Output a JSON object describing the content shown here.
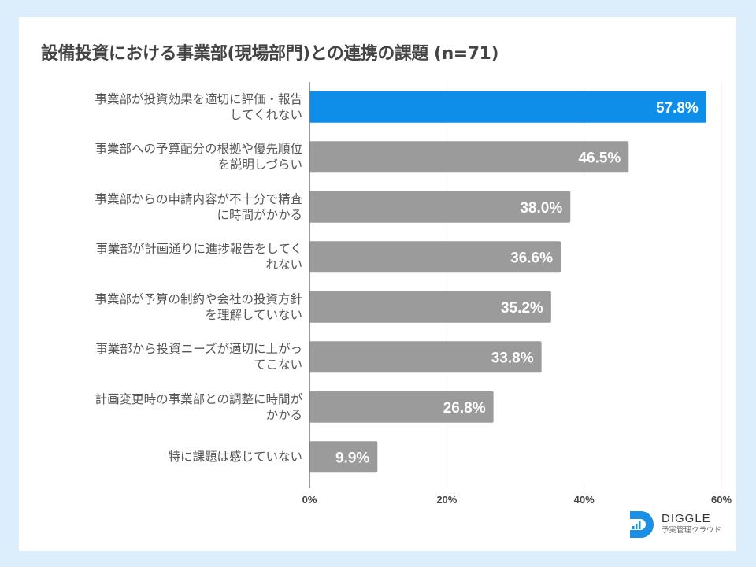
{
  "brand": {
    "name": "DIGGLE",
    "tagline": "予実管理クラウド",
    "logo_color": "#1a8fe6",
    "background": "#dcedfb"
  },
  "chart_data": {
    "type": "bar",
    "orientation": "horizontal",
    "title": "設備投資における事業部(現場部門)との連携の課題 (n=71)",
    "xlabel": "",
    "ylabel": "",
    "xlim": [
      0,
      60
    ],
    "x_ticks": [
      "0%",
      "20%",
      "40%",
      "60%"
    ],
    "x_tick_values": [
      0,
      20,
      40,
      60
    ],
    "grid": true,
    "legend": "none",
    "highlight_color": "#0f8ee9",
    "bar_color": "#9b9b9b",
    "categories": [
      [
        "事業部が投資効果を適切に評価・報告",
        "してくれない"
      ],
      [
        "事業部への予算配分の根拠や優先順位",
        "を説明しづらい"
      ],
      [
        "事業部からの申請内容が不十分で精査",
        "に時間がかかる"
      ],
      [
        "事業部が計画通りに進捗報告をしてく",
        "れない"
      ],
      [
        "事業部が予算の制約や会社の投資方針",
        "を理解していない"
      ],
      [
        "事業部から投資ニーズが適切に上がっ",
        "てこない"
      ],
      [
        "計画変更時の事業部との調整に時間が",
        "かかる"
      ],
      [
        "特に課題は感じていない"
      ]
    ],
    "values": [
      57.8,
      46.5,
      38.0,
      36.6,
      35.2,
      33.8,
      26.8,
      9.9
    ],
    "value_labels": [
      "57.8%",
      "46.5%",
      "38.0%",
      "36.6%",
      "35.2%",
      "33.8%",
      "26.8%",
      "9.9%"
    ],
    "highlighted_index": 0
  }
}
